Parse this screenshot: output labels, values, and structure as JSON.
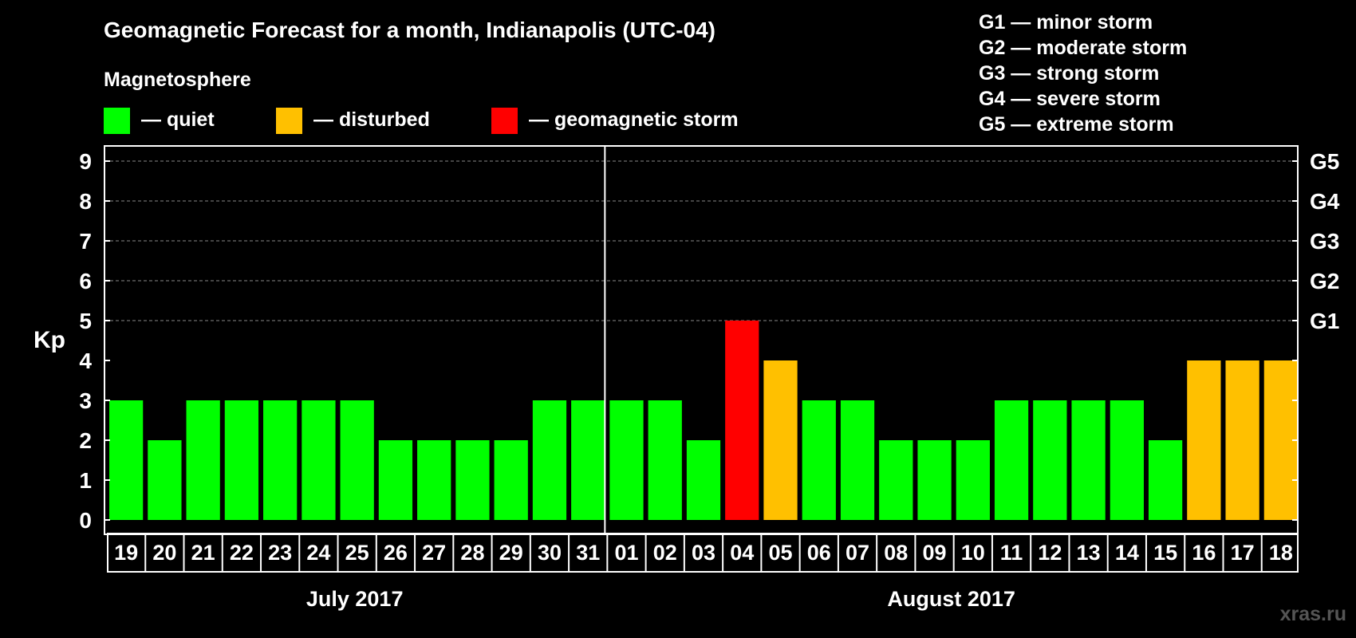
{
  "title": "Geomagnetic Forecast for a month, Indianapolis (UTC-04)",
  "legend": {
    "heading": "Magnetosphere",
    "items": [
      {
        "label": "— quiet",
        "color": "#00ff00"
      },
      {
        "label": "— disturbed",
        "color": "#ffc000"
      },
      {
        "label": "— geomagnetic storm",
        "color": "#ff0000"
      }
    ]
  },
  "g_scale": [
    "G1 — minor storm",
    "G2 — moderate storm",
    "G3 — strong storm",
    "G4 — severe storm",
    "G5 — extreme storm"
  ],
  "watermark": "xras.ru",
  "colors": {
    "quiet": "#00ff00",
    "disturbed": "#ffc000",
    "storm": "#ff0000",
    "background": "#000000",
    "grid": "#888888"
  },
  "chart_data": {
    "type": "bar",
    "ylabel": "Kp",
    "ylim": [
      0,
      9
    ],
    "yticks": [
      0,
      1,
      2,
      3,
      4,
      5,
      6,
      7,
      8,
      9
    ],
    "right_ticks": [
      {
        "value": 5,
        "label": "G1"
      },
      {
        "value": 6,
        "label": "G2"
      },
      {
        "value": 7,
        "label": "G3"
      },
      {
        "value": 8,
        "label": "G4"
      },
      {
        "value": 9,
        "label": "G5"
      }
    ],
    "grid": true,
    "categories": [
      "19",
      "20",
      "21",
      "22",
      "23",
      "24",
      "25",
      "26",
      "27",
      "28",
      "29",
      "30",
      "31",
      "01",
      "02",
      "03",
      "04",
      "05",
      "06",
      "07",
      "08",
      "09",
      "10",
      "11",
      "12",
      "13",
      "14",
      "15",
      "16",
      "17",
      "18"
    ],
    "values": [
      3,
      2,
      3,
      3,
      3,
      3,
      3,
      2,
      2,
      2,
      2,
      3,
      3,
      3,
      3,
      2,
      5,
      4,
      3,
      3,
      2,
      2,
      2,
      3,
      3,
      3,
      3,
      2,
      4,
      4,
      4
    ],
    "months": [
      {
        "label": "July 2017",
        "first_index": 0,
        "last_index": 12
      },
      {
        "label": "August 2017",
        "first_index": 13,
        "last_index": 30
      }
    ]
  }
}
